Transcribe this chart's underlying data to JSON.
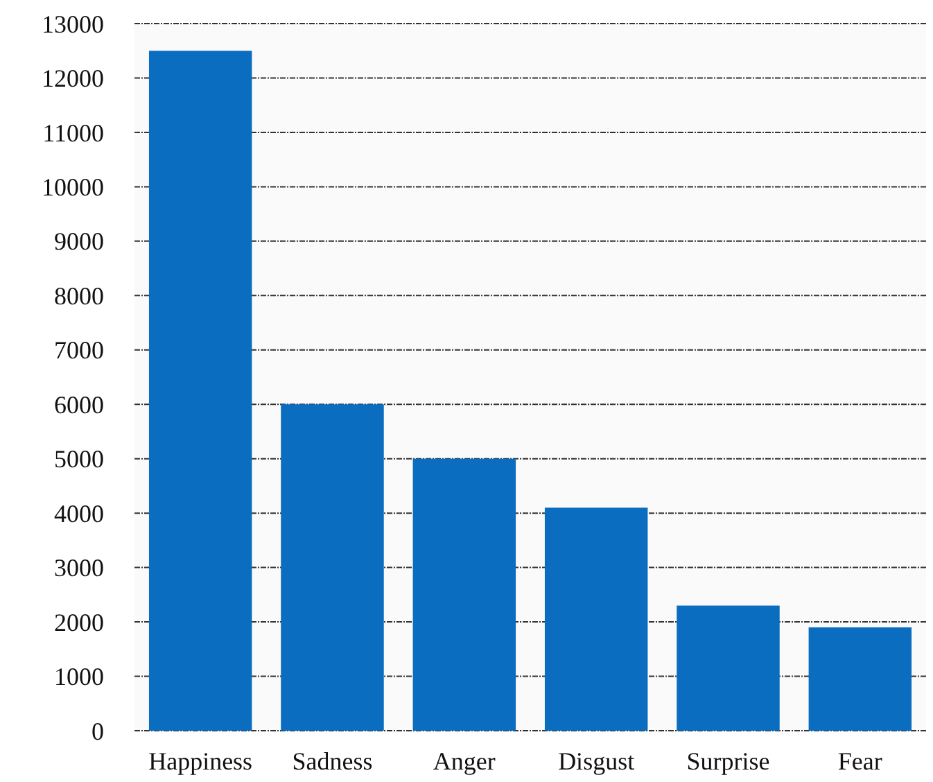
{
  "chart_data": {
    "type": "bar",
    "categories": [
      "Happiness",
      "Sadness",
      "Anger",
      "Disgust",
      "Surprise",
      "Fear"
    ],
    "values": [
      12500,
      6000,
      5000,
      4100,
      2300,
      1900
    ],
    "color": "#0a6dbf",
    "ylim": [
      0,
      13000
    ],
    "yticks": [
      0,
      1000,
      2000,
      3000,
      4000,
      5000,
      6000,
      7000,
      8000,
      9000,
      10000,
      11000,
      12000,
      13000
    ],
    "grid": "y"
  }
}
